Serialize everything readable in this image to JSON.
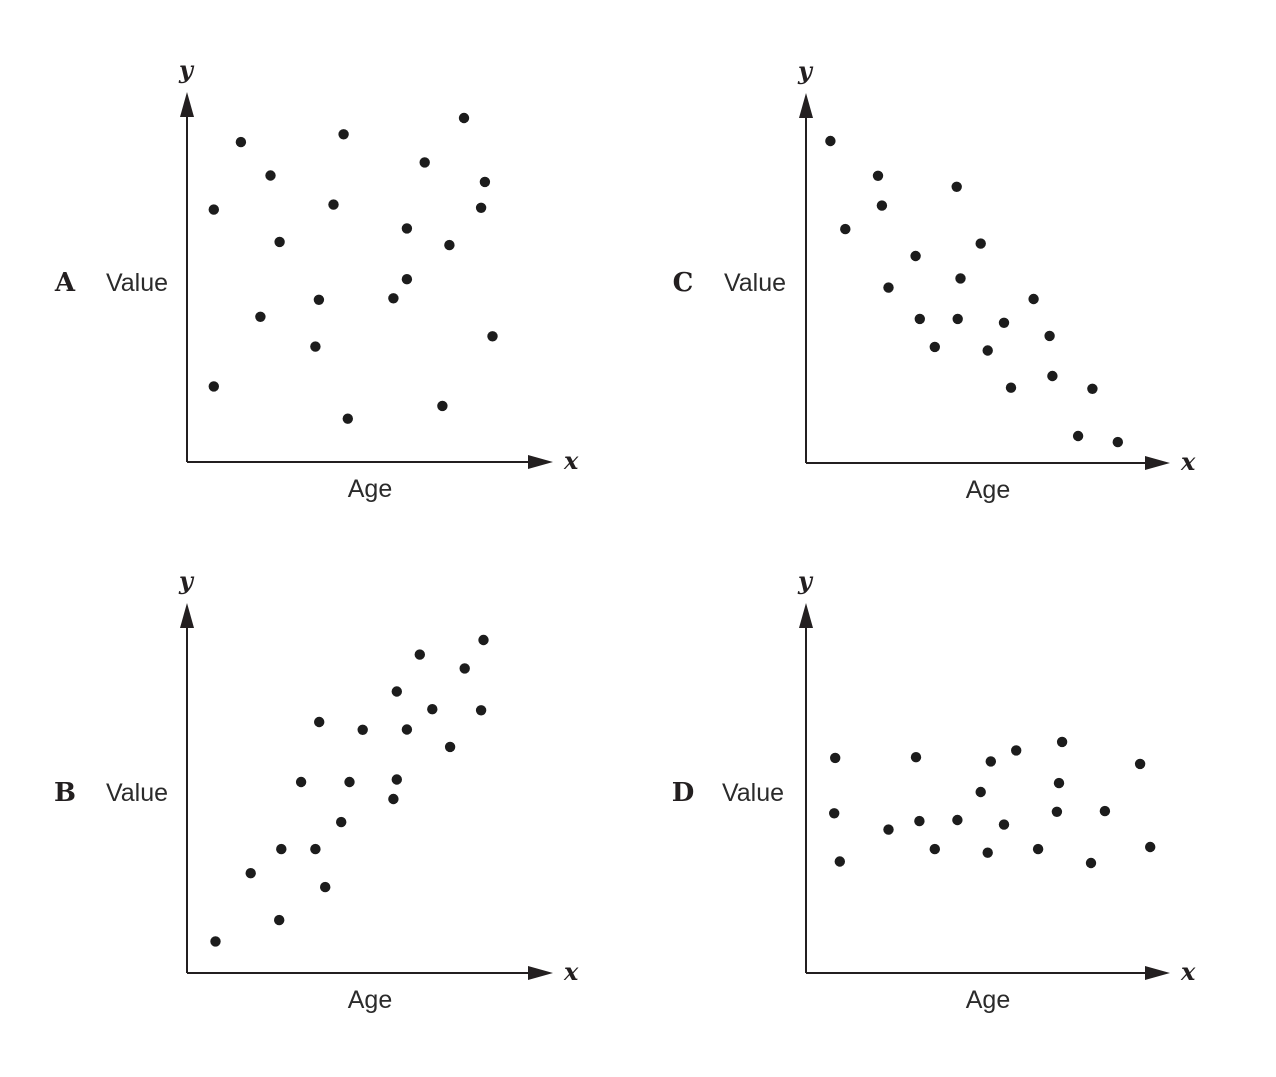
{
  "figure": {
    "background_color": "#ffffff",
    "dot_color": "#1c1c1c",
    "axis_color": "#231f20",
    "label_color": "#2b2b2b"
  },
  "chart_data": [
    {
      "panel_label": "A",
      "type": "scatter",
      "ylabel": "Value",
      "xlabel": "Age",
      "y_axis_symbol": "y",
      "x_axis_symbol": "x",
      "axis_ticks": "none",
      "pattern": "no correlation - points scattered randomly across the plot",
      "points_pct": [
        [
          79.6,
          96.9
        ],
        [
          45.0,
          92.3
        ],
        [
          15.5,
          90.1
        ],
        [
          68.3,
          84.4
        ],
        [
          24.0,
          80.7
        ],
        [
          85.6,
          78.9
        ],
        [
          42.1,
          72.5
        ],
        [
          7.7,
          71.1
        ],
        [
          84.5,
          71.6
        ],
        [
          63.2,
          65.8
        ],
        [
          26.6,
          62.0
        ],
        [
          75.4,
          61.1
        ],
        [
          63.2,
          51.5
        ],
        [
          37.9,
          45.7
        ],
        [
          59.3,
          46.1
        ],
        [
          21.1,
          40.9
        ],
        [
          36.9,
          32.5
        ],
        [
          87.8,
          35.4
        ],
        [
          7.7,
          21.3
        ],
        [
          73.4,
          15.8
        ],
        [
          46.2,
          12.2
        ]
      ]
    },
    {
      "panel_label": "B",
      "type": "scatter",
      "ylabel": "Value",
      "xlabel": "Age",
      "y_axis_symbol": "y",
      "x_axis_symbol": "x",
      "axis_ticks": "none",
      "pattern": "positive correlation - points rise from lower-left to upper-right",
      "points_pct": [
        [
          85.2,
          93.8
        ],
        [
          66.9,
          89.7
        ],
        [
          79.8,
          85.8
        ],
        [
          60.3,
          79.3
        ],
        [
          70.5,
          74.3
        ],
        [
          84.5,
          74.0
        ],
        [
          38.0,
          70.7
        ],
        [
          50.5,
          68.5
        ],
        [
          63.2,
          68.6
        ],
        [
          75.6,
          63.7
        ],
        [
          32.8,
          53.8
        ],
        [
          46.7,
          53.8
        ],
        [
          60.3,
          54.5
        ],
        [
          59.3,
          49.0
        ],
        [
          44.3,
          42.5
        ],
        [
          27.1,
          34.9
        ],
        [
          36.9,
          34.9
        ],
        [
          18.3,
          28.1
        ],
        [
          39.7,
          24.2
        ],
        [
          26.5,
          14.9
        ],
        [
          8.2,
          8.9
        ]
      ]
    },
    {
      "panel_label": "C",
      "type": "scatter",
      "ylabel": "Value",
      "xlabel": "Age",
      "y_axis_symbol": "y",
      "x_axis_symbol": "x",
      "axis_ticks": "none",
      "pattern": "negative correlation - points fall from upper-left to lower-right",
      "points_pct": [
        [
          7.0,
          90.7
        ],
        [
          20.7,
          80.9
        ],
        [
          43.3,
          77.8
        ],
        [
          21.8,
          72.5
        ],
        [
          11.3,
          65.9
        ],
        [
          50.2,
          61.8
        ],
        [
          31.5,
          58.3
        ],
        [
          44.4,
          52.0
        ],
        [
          23.7,
          49.4
        ],
        [
          65.4,
          46.2
        ],
        [
          32.7,
          40.6
        ],
        [
          43.6,
          40.6
        ],
        [
          56.9,
          39.5
        ],
        [
          70.0,
          35.8
        ],
        [
          37.0,
          32.7
        ],
        [
          52.2,
          31.7
        ],
        [
          70.8,
          24.5
        ],
        [
          58.9,
          21.2
        ],
        [
          82.3,
          20.9
        ],
        [
          78.2,
          7.6
        ],
        [
          89.6,
          5.9
        ]
      ]
    },
    {
      "panel_label": "D",
      "type": "scatter",
      "ylabel": "Value",
      "xlabel": "Age",
      "y_axis_symbol": "y",
      "x_axis_symbol": "x",
      "axis_ticks": "none",
      "pattern": "little/no correlation - points form a loose horizontal band at mid-height",
      "points_pct": [
        [
          73.6,
          65.1
        ],
        [
          60.4,
          62.7
        ],
        [
          8.4,
          60.6
        ],
        [
          31.6,
          60.8
        ],
        [
          53.1,
          59.6
        ],
        [
          96.0,
          58.9
        ],
        [
          72.7,
          53.5
        ],
        [
          50.2,
          51.0
        ],
        [
          72.1,
          45.4
        ],
        [
          8.1,
          45.0
        ],
        [
          85.9,
          45.6
        ],
        [
          32.6,
          42.8
        ],
        [
          43.5,
          43.1
        ],
        [
          23.7,
          40.4
        ],
        [
          56.9,
          41.8
        ],
        [
          37.0,
          34.9
        ],
        [
          52.2,
          33.9
        ],
        [
          66.7,
          34.9
        ],
        [
          98.9,
          35.5
        ],
        [
          81.9,
          31.0
        ],
        [
          9.7,
          31.4
        ]
      ]
    }
  ]
}
